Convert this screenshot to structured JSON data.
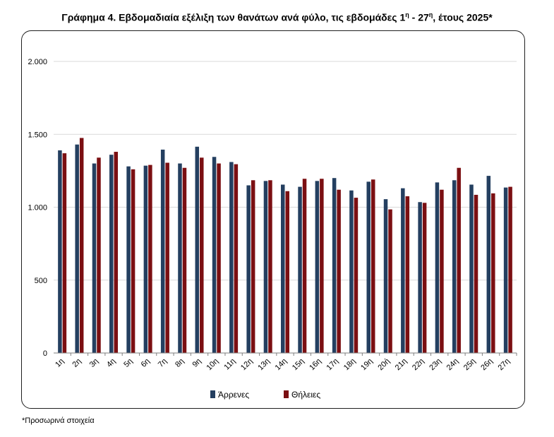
{
  "title": {
    "text": "Γράφημα 4. Εβδομαδιαία εξέλιξη των θανάτων ανά φύλο, τις εβδομάδες 1",
    "sup1": "η",
    "mid": " - 27",
    "sup2": "η",
    "end": ", έτους 2025*"
  },
  "footnote": "*Προσωρινά στοιχεία",
  "colors": {
    "male": "#243f60",
    "female": "#7b0f12",
    "grid": "#d9d9d9",
    "axis": "#7f7f7f"
  },
  "chart_data": {
    "type": "bar",
    "title": "",
    "xlabel": "",
    "ylabel": "",
    "ylim": [
      0,
      2000
    ],
    "yticks": [
      0,
      500,
      1000,
      1500,
      2000
    ],
    "ytick_labels": [
      "0",
      "500",
      "1.000",
      "1.500",
      "2.000"
    ],
    "grid": true,
    "legend_position": "bottom",
    "categories": [
      "1η",
      "2η",
      "3η",
      "4η",
      "5η",
      "6η",
      "7η",
      "8η",
      "9η",
      "10η",
      "11η",
      "12η",
      "13η",
      "14η",
      "15η",
      "16η",
      "17η",
      "18η",
      "19η",
      "20ή",
      "21η",
      "22η",
      "23η",
      "24η",
      "25η",
      "26η",
      "27η"
    ],
    "series": [
      {
        "name": "Άρρενες",
        "color": "#243f60",
        "values": [
          1390,
          1430,
          1300,
          1360,
          1280,
          1285,
          1395,
          1300,
          1415,
          1345,
          1310,
          1150,
          1180,
          1155,
          1140,
          1180,
          1200,
          1115,
          1175,
          1055,
          1130,
          1035,
          1170,
          1185,
          1155,
          1215,
          1135
        ]
      },
      {
        "name": "Θήλειες",
        "color": "#7b0f12",
        "values": [
          1370,
          1475,
          1340,
          1380,
          1260,
          1290,
          1305,
          1270,
          1340,
          1300,
          1295,
          1185,
          1185,
          1110,
          1195,
          1195,
          1120,
          1065,
          1190,
          985,
          1075,
          1030,
          1120,
          1270,
          1085,
          1095,
          1140
        ]
      }
    ]
  }
}
